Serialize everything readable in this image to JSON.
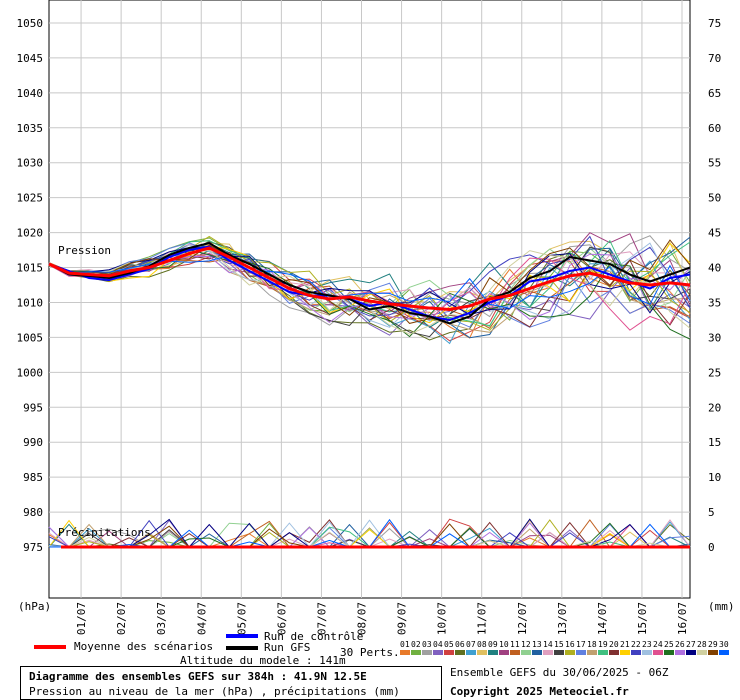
{
  "chart_data": {
    "type": "line",
    "ylabel_left": "(hPa)",
    "ylabel_right": "(mm)",
    "left_ticks": [
      1050,
      1045,
      1040,
      1035,
      1030,
      1025,
      1020,
      1015,
      1010,
      1005,
      1000,
      995,
      990,
      985,
      980,
      975
    ],
    "right_ticks": [
      75,
      70,
      65,
      60,
      55,
      50,
      45,
      40,
      35,
      30,
      25,
      20,
      15,
      10,
      5,
      0
    ],
    "ylim_left": [
      970,
      1052
    ],
    "x_ticks": [
      "01/07",
      "02/07",
      "03/07",
      "04/07",
      "05/07",
      "06/07",
      "07/07",
      "08/07",
      "09/07",
      "10/07",
      "11/07",
      "12/07",
      "13/07",
      "14/07",
      "15/07",
      "16/07"
    ],
    "x_range_days": [
      0,
      16
    ],
    "grid": true,
    "annotations": [
      "Pression",
      "Précipitations"
    ],
    "series": [
      {
        "name": "Moyenne des scénarios",
        "color": "#ff0000",
        "x": [
          0,
          0.5,
          1,
          1.5,
          2,
          2.5,
          3,
          3.5,
          4,
          4.5,
          5,
          5.5,
          6,
          6.5,
          7,
          7.5,
          8,
          8.5,
          9,
          9.5,
          10,
          10.5,
          11,
          11.5,
          12,
          12.5,
          13,
          13.5,
          14,
          14.5,
          15,
          15.5,
          16
        ],
        "values": [
          1015.5,
          1014.2,
          1014.0,
          1013.8,
          1014.5,
          1015.0,
          1016.0,
          1017.0,
          1017.8,
          1016.5,
          1015.0,
          1013.5,
          1012.0,
          1011.0,
          1010.5,
          1010.8,
          1010.2,
          1009.8,
          1009.5,
          1009.2,
          1009.0,
          1009.5,
          1010.5,
          1011.0,
          1012.0,
          1013.0,
          1013.8,
          1014.2,
          1013.5,
          1012.8,
          1012.5,
          1012.8,
          1012.5
        ]
      },
      {
        "name": "Run de contrôle",
        "color": "#0000ff",
        "x": [
          0,
          0.5,
          1,
          1.5,
          2,
          2.5,
          3,
          3.5,
          4,
          4.5,
          5,
          5.5,
          6,
          6.5,
          7,
          7.5,
          8,
          8.5,
          9,
          9.5,
          10,
          10.5,
          11,
          11.5,
          12,
          12.5,
          13,
          13.5,
          14,
          14.5,
          15,
          15.5,
          16
        ],
        "values": [
          1015.5,
          1014.5,
          1013.5,
          1013.2,
          1014.0,
          1014.8,
          1016.5,
          1017.5,
          1018.0,
          1016.0,
          1014.5,
          1013.0,
          1011.5,
          1011.0,
          1011.0,
          1010.5,
          1009.5,
          1010.0,
          1009.0,
          1008.0,
          1007.5,
          1008.5,
          1010.0,
          1011.0,
          1013.0,
          1013.5,
          1014.5,
          1015.0,
          1014.0,
          1013.0,
          1012.0,
          1013.5,
          1014.0
        ]
      },
      {
        "name": "Run GFS",
        "color": "#000000",
        "x": [
          0,
          0.5,
          1,
          1.5,
          2,
          2.5,
          3,
          3.5,
          4,
          4.5,
          5,
          5.5,
          6,
          6.5,
          7,
          7.5,
          8,
          8.5,
          9,
          9.5,
          10,
          10.5,
          11,
          11.5,
          12,
          12.5,
          13,
          13.5,
          14,
          14.5,
          15,
          15.5,
          16
        ],
        "values": [
          1015.5,
          1014.0,
          1013.8,
          1013.5,
          1014.2,
          1015.2,
          1016.8,
          1017.8,
          1018.5,
          1016.8,
          1015.5,
          1014.0,
          1012.5,
          1011.5,
          1011.0,
          1010.5,
          1009.0,
          1009.5,
          1008.5,
          1008.0,
          1007.0,
          1008.0,
          1010.5,
          1011.5,
          1013.5,
          1014.5,
          1016.5,
          1016.0,
          1015.5,
          1014.0,
          1013.0,
          1014.0,
          1015.0
        ]
      }
    ]
  },
  "legend": {
    "mean": "Moyenne des scénarios",
    "control": "Run de contrôle",
    "gfs": "Run GFS",
    "perts": "30 Perts.",
    "pert_numbers": [
      "01",
      "02",
      "03",
      "04",
      "05",
      "06",
      "07",
      "08",
      "09",
      "10",
      "11",
      "12",
      "13",
      "14",
      "15",
      "16",
      "17",
      "18",
      "19",
      "20",
      "21",
      "22",
      "23",
      "24",
      "25",
      "26",
      "27",
      "28",
      "29",
      "30"
    ],
    "pert_colors": [
      "#e87a2a",
      "#70b040",
      "#a0a0a0",
      "#8060c0",
      "#d04040",
      "#607020",
      "#40a0d0",
      "#e0c060",
      "#208080",
      "#a04080",
      "#c06020",
      "#90d090",
      "#2060a0",
      "#e0a0c0",
      "#404040",
      "#b0b020",
      "#6080e0",
      "#c0a070",
      "#40c080",
      "#803030",
      "#ffd000",
      "#4040c0",
      "#a0c0e0",
      "#e05090",
      "#207020",
      "#b070e0",
      "#000080",
      "#d0d0a0",
      "#804000",
      "#0060ff"
    ],
    "altitude": "Altitude du modele : 141m"
  },
  "footer": {
    "title": "Diagramme des ensembles GEFS sur 384h : 41.9N 12.5E",
    "subtitle": "Pression au niveau de la mer (hPa) , précipitations (mm)",
    "run_info": "Ensemble GEFS du 30/06/2025 - 06Z",
    "copyright": "Copyright 2025 Meteociel.fr"
  }
}
